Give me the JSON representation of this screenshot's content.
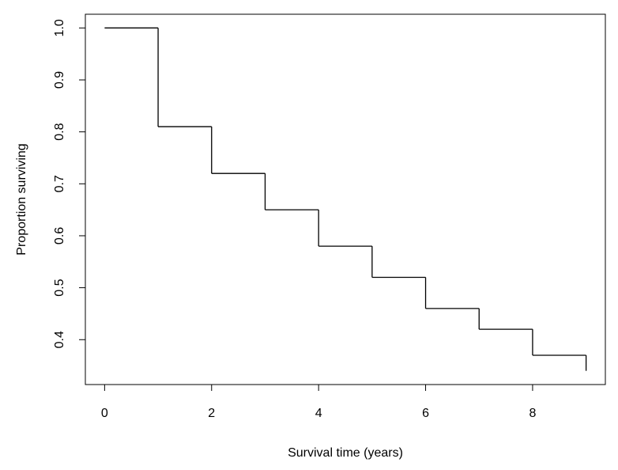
{
  "chart_data": {
    "type": "step",
    "x_label": "Survival time (years)",
    "y_label": "Proportion surviving",
    "x": [
      0,
      1,
      2,
      3,
      4,
      5,
      6,
      7,
      8,
      9
    ],
    "values": [
      1.0,
      0.81,
      0.72,
      0.65,
      0.58,
      0.52,
      0.46,
      0.42,
      0.37,
      0.34
    ],
    "color": "#000000",
    "xlim": [
      -0.36,
      9.36
    ],
    "ylim": [
      0.3136,
      1.0264
    ],
    "xticks": [
      0,
      2,
      4,
      6,
      8
    ],
    "yticks": [
      0.4,
      0.5,
      0.6,
      0.7,
      0.8,
      0.9,
      {
        "value": 1,
        "label": "1.0"
      }
    ]
  }
}
